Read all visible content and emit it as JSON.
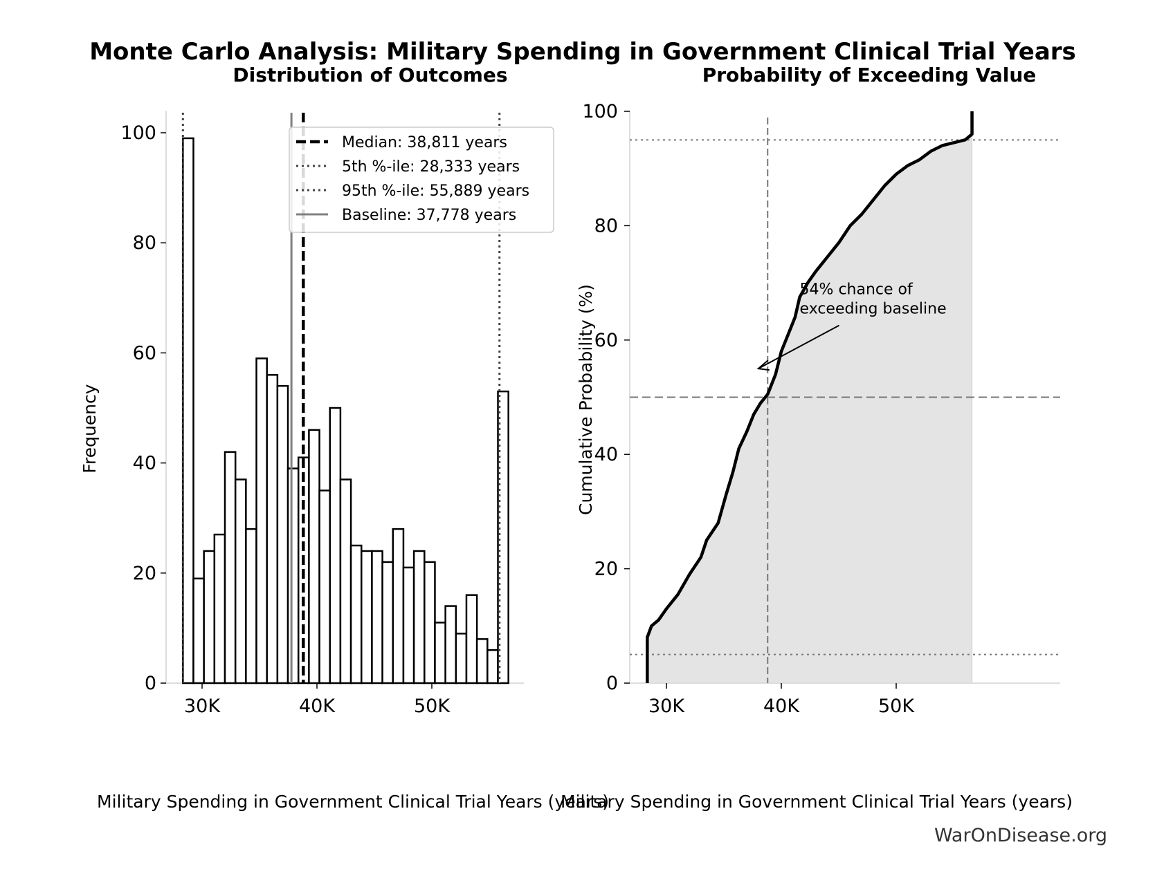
{
  "suptitle": "Monte Carlo Analysis: Military Spending in Government Clinical Trial Years",
  "watermark": "WarOnDisease.org",
  "chart_data": [
    {
      "type": "bar",
      "title": "Distribution of Outcomes",
      "xlabel": "Military Spending in Government Clinical Trial Years (years)",
      "ylabel": "Frequency",
      "xlim": [
        27000,
        58000
      ],
      "ylim": [
        0,
        104
      ],
      "xticks": [
        30000,
        40000,
        50000
      ],
      "xtick_labels": [
        "30K",
        "40K",
        "50K"
      ],
      "yticks": [
        0,
        20,
        40,
        60,
        80,
        100
      ],
      "bin_range": [
        28333,
        56667
      ],
      "values": [
        99,
        19,
        24,
        27,
        42,
        37,
        28,
        59,
        56,
        54,
        39,
        41,
        46,
        35,
        50,
        37,
        25,
        24,
        24,
        22,
        28,
        21,
        24,
        22,
        11,
        14,
        9,
        16,
        8,
        6,
        53
      ],
      "bar_fill": "#ffffff",
      "bar_edge": "#000000",
      "legend_position": "top-right",
      "reference_lines": [
        {
          "label": "Median: 38,811 years",
          "x": 38811,
          "style": "dashed",
          "color": "#000000"
        },
        {
          "label": "5th %-ile: 28,333 years",
          "x": 28333,
          "style": "dotted",
          "color": "#444444"
        },
        {
          "label": "95th %-ile: 55,889 years",
          "x": 55889,
          "style": "dotted",
          "color": "#444444"
        },
        {
          "label": "Baseline: 37,778 years",
          "x": 37778,
          "style": "solid",
          "color": "#808080"
        }
      ]
    },
    {
      "type": "line",
      "title": "Probability of Exceeding Value",
      "xlabel": "Military Spending in Government Clinical Trial Years (years)",
      "ylabel": "Cumulative Probability (%)",
      "xlim": [
        27000,
        58200
      ],
      "ylim": [
        0,
        100
      ],
      "xticks": [
        30000,
        40000,
        50000
      ],
      "xtick_labels": [
        "30K",
        "40K",
        "50K"
      ],
      "yticks": [
        0,
        20,
        40,
        60,
        80,
        100
      ],
      "fill_color": "#e4e4e4",
      "x": [
        28333,
        28333,
        28700,
        29300,
        30000,
        31000,
        32000,
        33000,
        33500,
        34500,
        35200,
        35800,
        36300,
        37000,
        37600,
        38200,
        38811,
        39500,
        40000,
        40600,
        41200,
        41600,
        42300,
        43000,
        44000,
        45000,
        46000,
        47000,
        48000,
        49000,
        50000,
        51000,
        52000,
        53000,
        54000,
        55000,
        56000,
        56600,
        56600
      ],
      "y": [
        0,
        8,
        10,
        11,
        13,
        15.5,
        19,
        22,
        25,
        28,
        33,
        37,
        41,
        44,
        47,
        49,
        50.5,
        54,
        58,
        61,
        64,
        67.5,
        70,
        72,
        74.5,
        77,
        80,
        82,
        84.5,
        87,
        89,
        90.5,
        91.5,
        93,
        94,
        94.5,
        95,
        96,
        100
      ],
      "annotation": {
        "text_line1": "54% chance of",
        "text_line2": "exceeding baseline",
        "text_x": 41600,
        "text_y": 68,
        "arrow_to_x": 38000,
        "arrow_to_y": 55
      },
      "hlines": [
        {
          "y": 95,
          "style": "dotted"
        },
        {
          "y": 50,
          "style": "dashed"
        },
        {
          "y": 5,
          "style": "dotted"
        }
      ],
      "vlines": [
        {
          "x": 38811,
          "style": "dashed"
        }
      ]
    }
  ]
}
